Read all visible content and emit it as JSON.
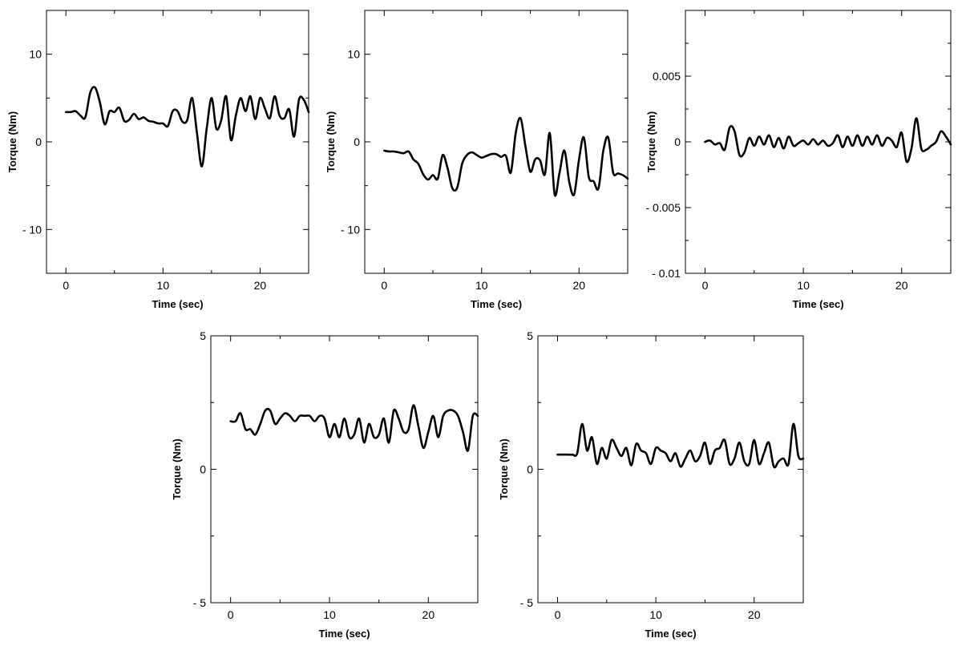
{
  "chart_data": [
    {
      "type": "line",
      "xlabel": "Time (sec)",
      "ylabel": "Torque (Nm)",
      "xlim": [
        -2,
        25
      ],
      "ylim": [
        -15,
        15
      ],
      "xticks": [
        0,
        10,
        20
      ],
      "yticks": [
        -10,
        0,
        10
      ],
      "xtick_labels": [
        "0",
        "10",
        "20"
      ],
      "ytick_labels": [
        "- 10",
        "0",
        "10"
      ],
      "series": [
        {
          "x": [
            0,
            0.5,
            1,
            1.5,
            2,
            2.5,
            3,
            3.5,
            4,
            4.5,
            5,
            5.5,
            6,
            6.5,
            7,
            7.5,
            8,
            8.5,
            9,
            9.5,
            10,
            10.5,
            11,
            11.5,
            12,
            12.5,
            13,
            13.5,
            14,
            14.5,
            15,
            15.5,
            16,
            16.5,
            17,
            17.5,
            18,
            18.5,
            19,
            19.5,
            20,
            20.5,
            21,
            21.5,
            22,
            22.5,
            23,
            23.5,
            24,
            24.5,
            25
          ],
          "y": [
            3.4,
            3.4,
            3.5,
            3,
            2.8,
            5.6,
            6.2,
            4.5,
            2,
            3.5,
            3.4,
            3.9,
            2.4,
            2.5,
            3.2,
            2.6,
            2.8,
            2.4,
            2.3,
            2.1,
            2.1,
            1.8,
            3.5,
            3.5,
            2.3,
            2.5,
            5,
            1,
            -2.8,
            1.5,
            5,
            1.5,
            2.5,
            5.2,
            0.2,
            3,
            5,
            3.5,
            5.2,
            2.6,
            5,
            3.8,
            2.7,
            5.2,
            3,
            2.7,
            3.7,
            0.6,
            4.8,
            4.8,
            3.4
          ]
        }
      ]
    },
    {
      "type": "line",
      "xlabel": "Time (sec)",
      "ylabel": "Torque (Nm)",
      "xlim": [
        -2,
        25
      ],
      "ylim": [
        -15,
        15
      ],
      "xticks": [
        0,
        10,
        20
      ],
      "yticks": [
        -10,
        0,
        10
      ],
      "xtick_labels": [
        "0",
        "10",
        "20"
      ],
      "ytick_labels": [
        "- 10",
        "0",
        "10"
      ],
      "series": [
        {
          "x": [
            0,
            0.5,
            1,
            1.5,
            2,
            2.5,
            3,
            3.5,
            4,
            4.5,
            5,
            5.5,
            6,
            6.5,
            7,
            7.5,
            8,
            8.5,
            9,
            9.5,
            10,
            10.5,
            11,
            11.5,
            12,
            12.5,
            13,
            13.5,
            14,
            14.5,
            15,
            15.5,
            16,
            16.5,
            17,
            17.5,
            18,
            18.5,
            19,
            19.5,
            20,
            20.5,
            21,
            21.5,
            22,
            22.5,
            23,
            23.5,
            24,
            24.5,
            25
          ],
          "y": [
            -1,
            -1.1,
            -1.1,
            -1.2,
            -1.3,
            -1.1,
            -2,
            -2.5,
            -3.7,
            -4.3,
            -3.8,
            -4.2,
            -1.5,
            -3,
            -5.3,
            -5.2,
            -2.5,
            -1.5,
            -1.2,
            -1.5,
            -1.8,
            -1.6,
            -1.4,
            -1.4,
            -1.7,
            -1.6,
            -3.5,
            1,
            2.7,
            -0.5,
            -3.4,
            -2,
            -2.1,
            -3.7,
            1,
            -6,
            -3.5,
            -1,
            -4.6,
            -6,
            -2,
            0.5,
            -4,
            -4.5,
            -5.3,
            -1,
            0.5,
            -3.5,
            -3.6,
            -3.8,
            -4.2
          ]
        }
      ]
    },
    {
      "type": "line",
      "xlabel": "Time (sec)",
      "ylabel": "Torque (Nm)",
      "xlim": [
        -2,
        25
      ],
      "ylim": [
        -0.01,
        0.01
      ],
      "xticks": [
        0,
        10,
        20
      ],
      "yticks": [
        -0.01,
        -0.005,
        0,
        0.005
      ],
      "xtick_labels": [
        "0",
        "10",
        "20"
      ],
      "ytick_labels": [
        "- 0.01",
        "- 0.005",
        "0",
        "0.005"
      ],
      "series": [
        {
          "x": [
            0,
            0.5,
            1,
            1.5,
            2,
            2.5,
            3,
            3.5,
            4,
            4.5,
            5,
            5.5,
            6,
            6.5,
            7,
            7.5,
            8,
            8.5,
            9,
            9.5,
            10,
            10.5,
            11,
            11.5,
            12,
            12.5,
            13,
            13.5,
            14,
            14.5,
            15,
            15.5,
            16,
            16.5,
            17,
            17.5,
            18,
            18.5,
            19,
            19.5,
            20,
            20.5,
            21,
            21.5,
            22,
            22.5,
            23,
            23.5,
            24,
            24.5,
            25
          ],
          "y": [
            0,
            0.0001,
            -0.0002,
            -0.0001,
            -0.0006,
            0.0011,
            0.0008,
            -0.001,
            -0.0008,
            0.0003,
            -0.0003,
            0.0004,
            -0.0002,
            0.0005,
            -0.0004,
            0.0003,
            -0.0005,
            0.0004,
            -0.0003,
            -0.0001,
            0.0001,
            -0.0002,
            0.0002,
            -0.0002,
            0.0001,
            -0.0003,
            -0.0001,
            0.0005,
            -0.0004,
            0.0004,
            -0.0003,
            0.0005,
            -0.0003,
            0.0004,
            -0.0002,
            0.0005,
            -0.0003,
            0.0003,
            0.0001,
            -0.0004,
            0.0007,
            -0.0015,
            -0.0005,
            0.0018,
            -0.0005,
            -0.0006,
            -0.0003,
            0,
            0.0008,
            0.0004,
            -0.0002
          ]
        }
      ]
    },
    {
      "type": "line",
      "xlabel": "Time (sec)",
      "ylabel": "Torque (Nm)",
      "xlim": [
        -2,
        25
      ],
      "ylim": [
        -5,
        5
      ],
      "xticks": [
        0,
        10,
        20
      ],
      "yticks": [
        -5,
        0,
        5
      ],
      "xtick_labels": [
        "0",
        "10",
        "20"
      ],
      "ytick_labels": [
        "- 5",
        "0",
        "5"
      ],
      "series": [
        {
          "x": [
            0,
            0.5,
            1,
            1.5,
            2,
            2.5,
            3,
            3.5,
            4,
            4.5,
            5,
            5.5,
            6,
            6.5,
            7,
            7.5,
            8,
            8.5,
            9,
            9.5,
            10,
            10.5,
            11,
            11.5,
            12,
            12.5,
            13,
            13.5,
            14,
            14.5,
            15,
            15.5,
            16,
            16.5,
            17,
            17.5,
            18,
            18.5,
            19,
            19.5,
            20,
            20.5,
            21,
            21.5,
            22,
            22.5,
            23,
            23.5,
            24,
            24.5,
            25
          ],
          "y": [
            1.8,
            1.8,
            2.1,
            1.5,
            1.5,
            1.3,
            1.7,
            2.2,
            2.2,
            1.7,
            1.9,
            2.1,
            2,
            1.8,
            2,
            2,
            2,
            1.8,
            2,
            1.9,
            1.2,
            1.7,
            1.2,
            1.9,
            1.2,
            1.3,
            1.9,
            1,
            1.7,
            1.2,
            1.3,
            1.9,
            1,
            2.2,
            1.9,
            1.4,
            1.5,
            2.4,
            1.6,
            0.8,
            1.4,
            2,
            1.2,
            2,
            2.2,
            2.2,
            2,
            1.4,
            0.7,
            2,
            2
          ]
        }
      ]
    },
    {
      "type": "line",
      "xlabel": "Time (sec)",
      "ylabel": "Torque (Nm)",
      "xlim": [
        -2,
        25
      ],
      "ylim": [
        -5,
        5
      ],
      "xticks": [
        0,
        10,
        20
      ],
      "yticks": [
        -5,
        0,
        5
      ],
      "xtick_labels": [
        "0",
        "10",
        "20"
      ],
      "ytick_labels": [
        "- 5",
        "0",
        "5"
      ],
      "series": [
        {
          "x": [
            0,
            0.5,
            1,
            1.5,
            2,
            2.5,
            3,
            3.5,
            4,
            4.5,
            5,
            5.5,
            6,
            6.5,
            7,
            7.5,
            8,
            8.5,
            9,
            9.5,
            10,
            10.5,
            11,
            11.5,
            12,
            12.5,
            13,
            13.5,
            14,
            14.5,
            15,
            15.5,
            16,
            16.5,
            17,
            17.5,
            18,
            18.5,
            19,
            19.5,
            20,
            20.5,
            21,
            21.5,
            22,
            22.5,
            23,
            23.5,
            24,
            24.5,
            25
          ],
          "y": [
            0.55,
            0.55,
            0.55,
            0.55,
            0.6,
            1.7,
            0.7,
            1.2,
            0.2,
            0.8,
            0.4,
            1.1,
            0.8,
            0.5,
            0.8,
            0.15,
            0.95,
            0.7,
            0.6,
            0.2,
            0.8,
            0.7,
            0.6,
            0.3,
            0.6,
            0.1,
            0.4,
            0.7,
            0.3,
            0.5,
            1,
            0.2,
            0.7,
            0.8,
            1.1,
            0.2,
            0.4,
            1,
            0.3,
            0.2,
            1.1,
            0.2,
            0.6,
            1,
            0.1,
            0.3,
            0.4,
            0.2,
            1.7,
            0.5,
            0.4
          ]
        }
      ]
    }
  ]
}
